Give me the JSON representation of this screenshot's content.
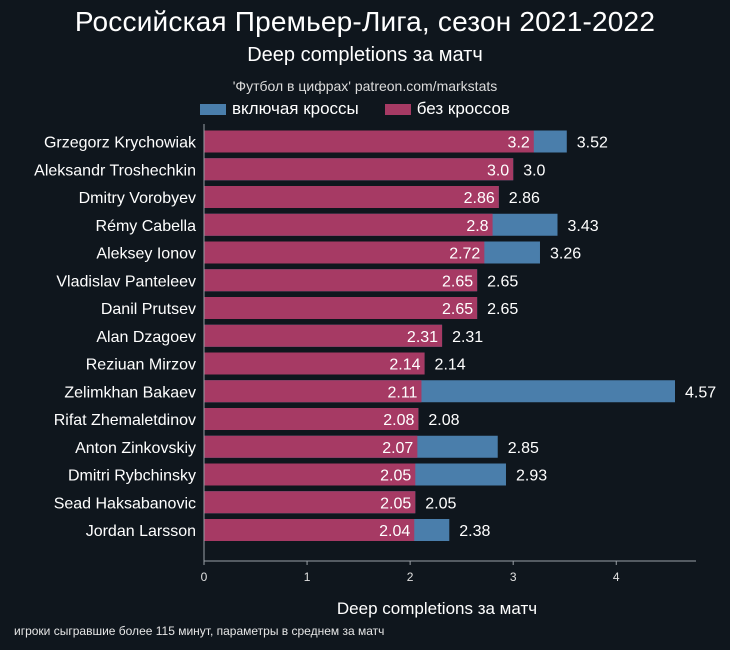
{
  "chart_data": {
    "type": "bar",
    "orientation": "horizontal",
    "title": "Российская Премьер-Лига, сезон 2021-2022",
    "subtitle": "Deep completions за матч",
    "source": "'Футбол в цифрах' patreon.com/markstats",
    "xlabel": "Deep completions за матч",
    "footnote": "игроки сыгравшие более 115 минут, параметры в среднем за матч",
    "xlim": [
      0,
      4.57
    ],
    "xticks": [
      0,
      1,
      2,
      3,
      4
    ],
    "legend_position": "top",
    "categories": [
      "Grzegorz Krychowiak",
      "Aleksandr Troshechkin",
      "Dmitry Vorobyev",
      "Rémy Cabella",
      "Aleksey Ionov",
      "Vladislav Panteleev",
      "Danil Prutsev",
      "Alan Dzagoev",
      "Reziuan Mirzov",
      "Zelimkhan Bakaev",
      "Rifat Zhemaletdinov",
      "Anton Zinkovskiy",
      "Dmitri Rybchinsky",
      "Sead Haksabanovic",
      "Jordan Larsson"
    ],
    "series": [
      {
        "name": "включая кроссы",
        "color": "#4a7eab",
        "values": [
          3.52,
          3.0,
          2.86,
          3.43,
          3.26,
          2.65,
          2.65,
          2.31,
          2.14,
          4.57,
          2.08,
          2.85,
          2.93,
          2.05,
          2.38
        ],
        "labels": [
          "3.52",
          "3.0",
          "2.86",
          "3.43",
          "3.26",
          "2.65",
          "2.65",
          "2.31",
          "2.14",
          "4.57",
          "2.08",
          "2.85",
          "2.93",
          "2.05",
          "2.38"
        ]
      },
      {
        "name": "без кроссов",
        "color": "#a63a64",
        "values": [
          3.2,
          3.0,
          2.86,
          2.8,
          2.72,
          2.65,
          2.65,
          2.31,
          2.14,
          2.11,
          2.08,
          2.07,
          2.05,
          2.05,
          2.04
        ],
        "labels": [
          "3.2",
          "3.0",
          "2.86",
          "2.8",
          "2.72",
          "2.65",
          "2.65",
          "2.31",
          "2.14",
          "2.11",
          "2.08",
          "2.07",
          "2.05",
          "2.05",
          "2.04"
        ]
      }
    ]
  }
}
